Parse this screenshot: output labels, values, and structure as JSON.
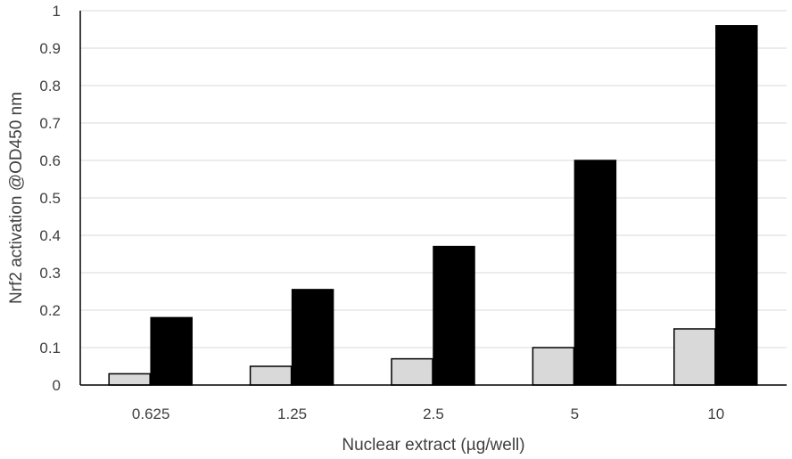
{
  "chart_data": {
    "type": "bar",
    "title": "",
    "xlabel": "Nuclear extract (µg/well)",
    "ylabel": "Nrf2 activation @OD450 nm",
    "categories": [
      "0.625",
      "1.25",
      "2.5",
      "5",
      "10"
    ],
    "series": [
      {
        "values": [
          0.03,
          0.05,
          0.07,
          0.1,
          0.15
        ],
        "color": "#d9d9d9"
      },
      {
        "values": [
          0.18,
          0.255,
          0.37,
          0.6,
          0.96
        ],
        "color": "#000000"
      }
    ],
    "ylim": [
      0,
      1
    ],
    "yticks": [
      "0",
      "0.1",
      "0.2",
      "0.3",
      "0.4",
      "0.5",
      "0.6",
      "0.7",
      "0.8",
      "0.9",
      "1"
    ],
    "grid": true,
    "legend": "none"
  }
}
